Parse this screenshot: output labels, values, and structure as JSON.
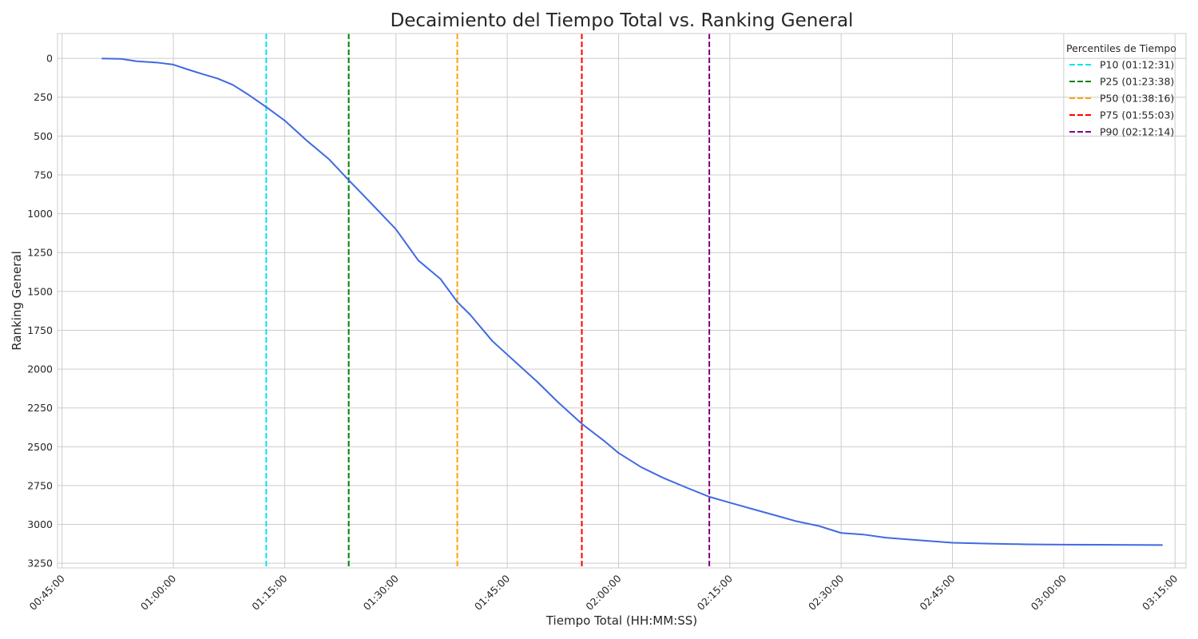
{
  "chart_data": {
    "type": "line",
    "title": "Decaimiento del Tiempo Total vs. Ranking General",
    "xlabel": "Tiempo Total (HH:MM:SS)",
    "ylabel": "Ranking General",
    "x_unit": "HH:MM:SS",
    "xlim": [
      "00:44:23",
      "03:16:29"
    ],
    "ylim": [
      3280,
      -160
    ],
    "y_inverted": true,
    "grid": true,
    "x_ticks": [
      "00:45:00",
      "01:00:00",
      "01:15:00",
      "01:30:00",
      "01:45:00",
      "02:00:00",
      "02:15:00",
      "02:30:00",
      "02:45:00",
      "03:00:00",
      "03:15:00"
    ],
    "y_ticks": [
      0,
      250,
      500,
      750,
      1000,
      1250,
      1500,
      1750,
      2000,
      2250,
      2500,
      2750,
      3000,
      3250
    ],
    "series": [
      {
        "color": "#4169e1",
        "points": [
          [
            "00:50:20",
            1
          ],
          [
            "00:53:00",
            3
          ],
          [
            "00:55:00",
            18
          ],
          [
            "00:58:00",
            28
          ],
          [
            "01:00:00",
            40
          ],
          [
            "01:02:00",
            72
          ],
          [
            "01:04:00",
            102
          ],
          [
            "01:06:00",
            130
          ],
          [
            "01:08:00",
            170
          ],
          [
            "01:10:00",
            230
          ],
          [
            "01:12:31",
            313
          ],
          [
            "01:15:00",
            400
          ],
          [
            "01:18:00",
            530
          ],
          [
            "01:21:00",
            650
          ],
          [
            "01:23:38",
            784
          ],
          [
            "01:26:00",
            900
          ],
          [
            "01:28:00",
            1000
          ],
          [
            "01:30:00",
            1100
          ],
          [
            "01:33:00",
            1300
          ],
          [
            "01:36:00",
            1420
          ],
          [
            "01:38:16",
            1568
          ],
          [
            "01:40:00",
            1650
          ],
          [
            "01:43:00",
            1820
          ],
          [
            "01:46:00",
            1950
          ],
          [
            "01:49:00",
            2080
          ],
          [
            "01:52:00",
            2220
          ],
          [
            "01:55:03",
            2352
          ],
          [
            "01:58:00",
            2460
          ],
          [
            "02:00:00",
            2540
          ],
          [
            "02:03:00",
            2630
          ],
          [
            "02:06:00",
            2700
          ],
          [
            "02:09:00",
            2760
          ],
          [
            "02:12:14",
            2822
          ],
          [
            "02:15:00",
            2860
          ],
          [
            "02:18:00",
            2900
          ],
          [
            "02:21:00",
            2940
          ],
          [
            "02:24:00",
            2980
          ],
          [
            "02:27:00",
            3010
          ],
          [
            "02:30:00",
            3055
          ],
          [
            "02:33:00",
            3065
          ],
          [
            "02:36:00",
            3085
          ],
          [
            "02:40:00",
            3100
          ],
          [
            "02:45:00",
            3118
          ],
          [
            "02:50:00",
            3124
          ],
          [
            "02:55:00",
            3128
          ],
          [
            "03:00:00",
            3130
          ],
          [
            "03:05:00",
            3131
          ],
          [
            "03:10:00",
            3132
          ],
          [
            "03:13:20",
            3133
          ]
        ]
      }
    ],
    "legend": {
      "title": "Percentiles de Tiempo",
      "placement": "top-right"
    },
    "percentile_lines": [
      {
        "label": "P10 (01:12:31)",
        "x": "01:12:31",
        "color": "#00e5ee"
      },
      {
        "label": "P25 (01:23:38)",
        "x": "01:23:38",
        "color": "#008000"
      },
      {
        "label": "P50 (01:38:16)",
        "x": "01:38:16",
        "color": "#ffa500"
      },
      {
        "label": "P75 (01:55:03)",
        "x": "01:55:03",
        "color": "#ff0000"
      },
      {
        "label": "P90 (02:12:14)",
        "x": "02:12:14",
        "color": "#800080"
      }
    ]
  }
}
